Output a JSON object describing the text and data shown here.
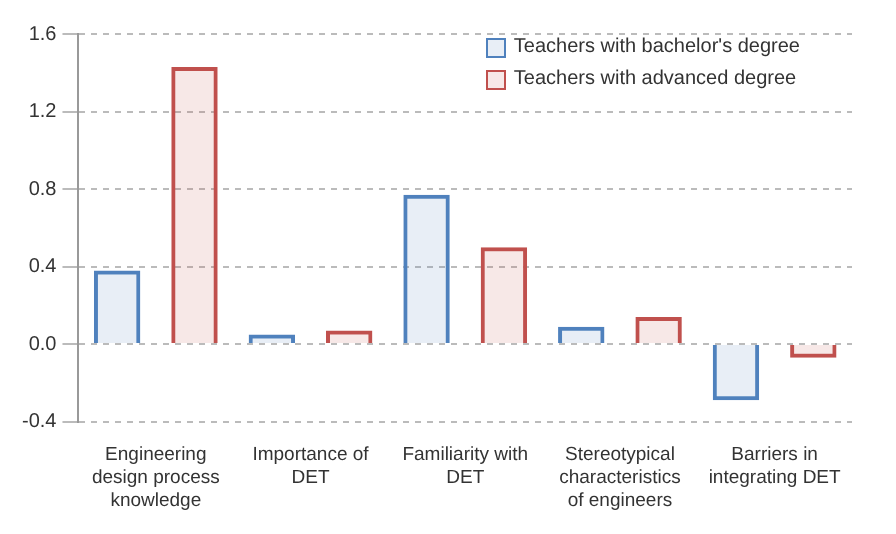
{
  "chart_data": {
    "type": "bar",
    "categories": [
      "Engineering design process knowledge",
      "Importance of DET",
      "Familiarity with DET",
      "Stereotypical characteristics of engineers",
      "Barriers in integrating DET"
    ],
    "series": [
      {
        "name": "Teachers with bachelor's degree",
        "color": "#4f81bd",
        "values": [
          0.38,
          0.05,
          0.77,
          0.09,
          -0.29
        ]
      },
      {
        "name": "Teachers with advanced degree",
        "color": "#c0504d",
        "values": [
          1.43,
          0.07,
          0.5,
          0.14,
          -0.07
        ]
      }
    ],
    "ylim": [
      -0.4,
      1.6
    ],
    "yticks": [
      {
        "value": -0.4,
        "label": "-0.4"
      },
      {
        "value": 0,
        "label": "0.0"
      },
      {
        "value": 0.4,
        "label": "0.4"
      },
      {
        "value": 0.8,
        "label": "0.8"
      },
      {
        "value": 1.2,
        "label": "1.2"
      },
      {
        "value": 1.6,
        "label": "1.6"
      }
    ],
    "grid": "y",
    "legend": "top right"
  }
}
